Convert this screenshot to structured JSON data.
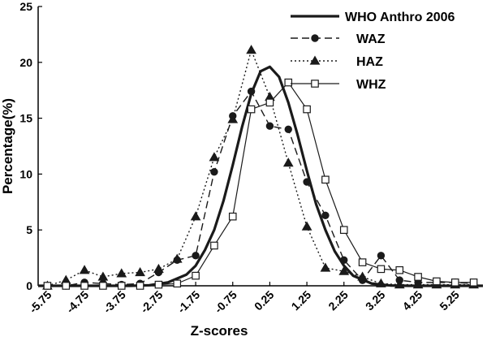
{
  "chart_data": {
    "type": "line",
    "title": "",
    "xlabel": "Z-scores",
    "ylabel": "Percentage(%)",
    "xlim": [
      -6.0,
      6.0
    ],
    "ylim": [
      0,
      25
    ],
    "x_ticks": [
      -5.75,
      -4.75,
      -3.75,
      -2.75,
      -1.75,
      -0.75,
      0.25,
      1.25,
      2.25,
      3.25,
      4.25,
      5.25
    ],
    "x_tick_labels": [
      "-5.75",
      "-4.75",
      "-3.75",
      "-2.75",
      "-1.75",
      "-0.75",
      "0.25",
      "1.25",
      "2.25",
      "3.25",
      "4.25",
      "5.25"
    ],
    "y_ticks": [
      0,
      5,
      10,
      15,
      20,
      25
    ],
    "y_tick_labels": [
      "0",
      "5",
      "10",
      "15",
      "20",
      "25"
    ],
    "grid": false,
    "legend_position": "top-right",
    "series": [
      {
        "name": "WHO Anthro 2006",
        "style": "solid-thick",
        "marker": "none",
        "color": "#1a1a1a",
        "x": [
          -6.0,
          -5.5,
          -5.0,
          -4.5,
          -4.0,
          -3.5,
          -3.0,
          -2.5,
          -2.0,
          -1.75,
          -1.5,
          -1.25,
          -1.0,
          -0.75,
          -0.5,
          -0.25,
          0.0,
          0.25,
          0.5,
          0.75,
          1.0,
          1.25,
          1.5,
          1.75,
          2.0,
          2.25,
          2.5,
          3.0,
          3.5,
          4.0,
          4.5,
          5.0,
          5.5,
          6.0
        ],
        "y": [
          0,
          0,
          0,
          0,
          0,
          0,
          0.05,
          0.3,
          1.0,
          1.8,
          3.2,
          5.0,
          7.6,
          10.8,
          14.2,
          17.2,
          19.2,
          19.6,
          18.7,
          16.4,
          13.5,
          10.3,
          7.3,
          5.0,
          3.1,
          1.8,
          0.9,
          0.2,
          0.03,
          0,
          0,
          0,
          0,
          0
        ]
      },
      {
        "name": "WAZ",
        "style": "dashed",
        "marker": "circle",
        "color": "#1a1a1a",
        "x": [
          -5.75,
          -5.25,
          -4.75,
          -4.25,
          -3.75,
          -3.25,
          -2.75,
          -2.25,
          -1.75,
          -1.25,
          -0.75,
          -0.25,
          0.25,
          0.75,
          1.25,
          1.75,
          2.25,
          2.75,
          3.25,
          3.75,
          4.25,
          4.75,
          5.25,
          5.75
        ],
        "y": [
          0,
          0,
          0.3,
          0.2,
          0.1,
          0.2,
          1.2,
          2.3,
          2.7,
          10.2,
          15.2,
          17.4,
          14.3,
          14.0,
          9.3,
          6.3,
          2.3,
          0.5,
          2.7,
          0.5,
          0.3,
          0.3,
          0.3,
          0.2
        ]
      },
      {
        "name": "HAZ",
        "style": "dotted",
        "marker": "triangle",
        "color": "#1a1a1a",
        "x": [
          -5.75,
          -5.25,
          -4.75,
          -4.25,
          -3.75,
          -3.25,
          -2.75,
          -2.25,
          -1.75,
          -1.25,
          -0.75,
          -0.25,
          0.25,
          0.75,
          1.25,
          1.75,
          2.25,
          2.75,
          3.25,
          3.75,
          4.25,
          4.75,
          5.25,
          5.75
        ],
        "y": [
          0,
          0.5,
          1.4,
          0.8,
          1.1,
          1.2,
          1.5,
          2.4,
          6.2,
          11.5,
          14.9,
          21.1,
          16.9,
          11.0,
          5.3,
          1.6,
          1.3,
          0.8,
          0.2,
          0.1,
          0.1,
          0.1,
          0.1,
          0.1
        ]
      },
      {
        "name": "WHZ",
        "style": "solid-thin",
        "marker": "square",
        "color": "#1a1a1a",
        "x": [
          -5.75,
          -5.25,
          -4.75,
          -4.25,
          -3.75,
          -3.25,
          -2.75,
          -2.25,
          -1.75,
          -1.25,
          -0.75,
          -0.25,
          0.25,
          0.75,
          1.25,
          1.75,
          2.25,
          2.75,
          3.25,
          3.75,
          4.25,
          4.75,
          5.25,
          5.75
        ],
        "y": [
          0,
          0,
          0,
          0,
          0,
          0,
          0.1,
          0.2,
          0.9,
          3.6,
          6.2,
          15.8,
          16.4,
          18.2,
          15.8,
          9.5,
          5.0,
          2.1,
          1.5,
          1.4,
          0.8,
          0.4,
          0.3,
          0.3
        ]
      }
    ]
  }
}
